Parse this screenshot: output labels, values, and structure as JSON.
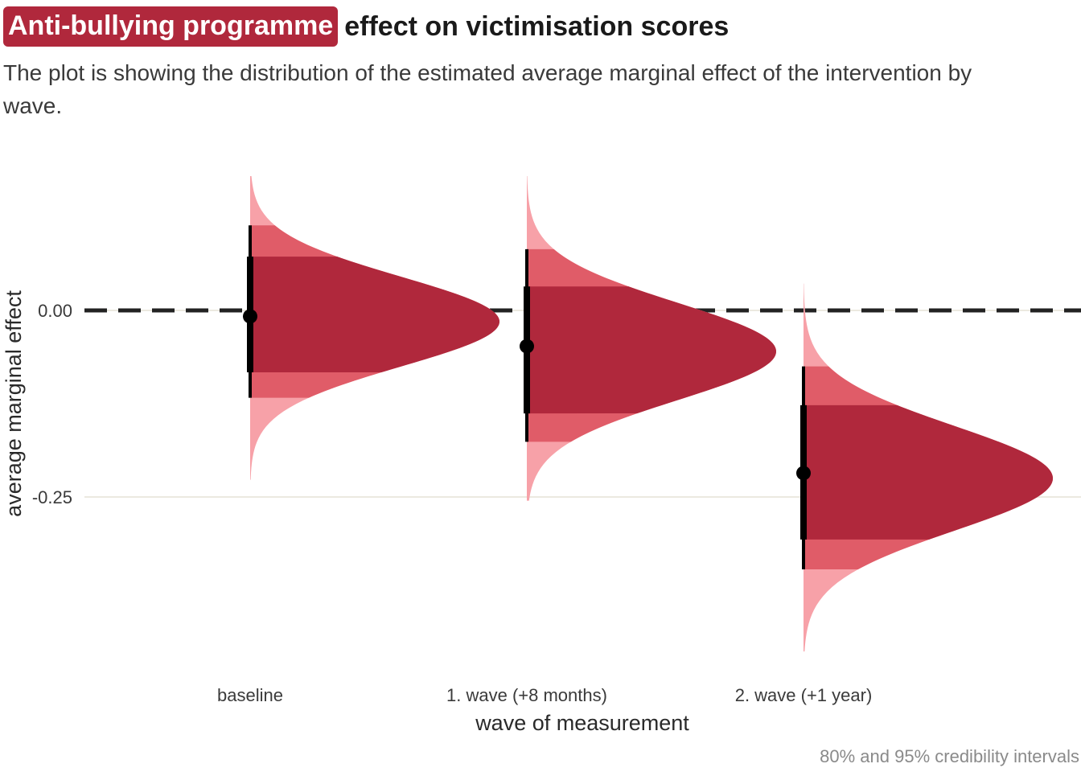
{
  "title": {
    "highlight": "Anti-bullying programme",
    "rest": "effect on victimisation scores"
  },
  "subtitle": "The plot is showing the distribution of the estimated average marginal effect of the intervention by wave.",
  "caption": "80% and 95% credibility intervals",
  "colors": {
    "interval_80": "#b0283c",
    "interval_95": "#e05c68",
    "tail": "#f7a1a8",
    "reference_line": "#222222",
    "grid": "#ece9e0",
    "point": "#000000"
  },
  "chart_data": {
    "type": "halfeye",
    "title": "Anti-bullying programme effect on victimisation scores",
    "xlabel": "wave of measurement",
    "ylabel": "average marginal effect",
    "categories": [
      "baseline",
      "1. wave (+8 months)",
      "2. wave (+1 year)"
    ],
    "y_ticks": [
      {
        "value": 0.0,
        "label": "0.00"
      },
      {
        "value": -0.25,
        "label": "-0.25"
      }
    ],
    "ylim": [
      -0.46,
      0.18
    ],
    "reference_line": 0,
    "grid": true,
    "distributions": [
      {
        "category": "baseline",
        "median": -0.008,
        "ci80": [
          -0.083,
          0.072
        ],
        "ci95": [
          -0.117,
          0.114
        ],
        "range": [
          -0.227,
          0.18
        ],
        "mode": -0.015,
        "sd": 0.06
      },
      {
        "category": "1. wave (+8 months)",
        "median": -0.048,
        "ci80": [
          -0.138,
          0.032
        ],
        "ci95": [
          -0.176,
          0.082
        ],
        "range": [
          -0.255,
          0.18
        ],
        "mode": -0.055,
        "sd": 0.065
      },
      {
        "category": "2. wave (+1 year)",
        "median": -0.218,
        "ci80": [
          -0.307,
          -0.127
        ],
        "ci95": [
          -0.347,
          -0.075
        ],
        "range": [
          -0.457,
          0.036
        ],
        "mode": -0.225,
        "sd": 0.07
      }
    ]
  }
}
